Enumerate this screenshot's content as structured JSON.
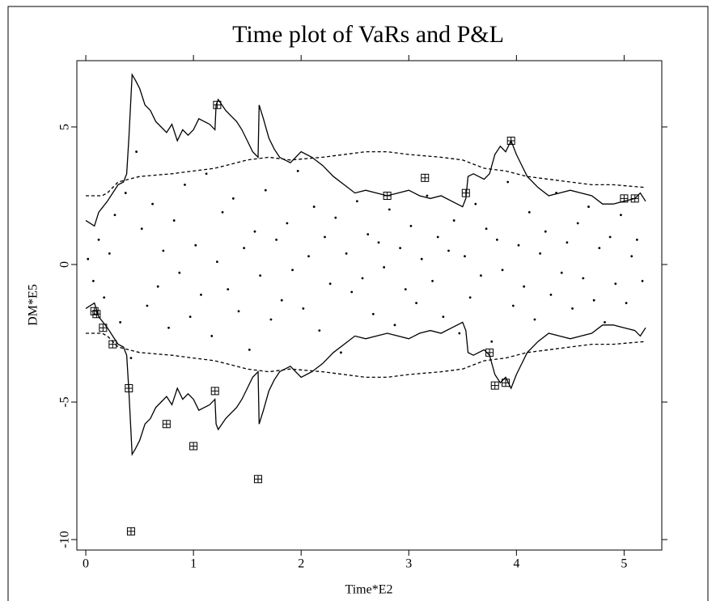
{
  "chart_data": {
    "type": "line",
    "title": "Time plot of VaRs and P&L",
    "x_label": "Time*E2",
    "y_label": "DM*E5",
    "xlim": [
      -0.083,
      5.35
    ],
    "ylim": [
      -10.38,
      7.41
    ],
    "xticks": [
      0,
      1,
      2,
      3,
      4,
      5
    ],
    "yticks": [
      -10,
      -5,
      0,
      5
    ],
    "grid": false,
    "series": [
      {
        "style": "solid",
        "color": "#000000",
        "x": [
          0,
          0.08,
          0.12,
          0.2,
          0.25,
          0.3,
          0.35,
          0.38,
          0.4,
          0.43,
          0.46,
          0.5,
          0.55,
          0.6,
          0.65,
          0.7,
          0.75,
          0.8,
          0.85,
          0.9,
          0.95,
          1.0,
          1.05,
          1.1,
          1.15,
          1.2,
          1.21,
          1.23,
          1.3,
          1.35,
          1.4,
          1.45,
          1.5,
          1.55,
          1.6,
          1.61,
          1.65,
          1.7,
          1.75,
          1.8,
          1.9,
          2.0,
          2.1,
          2.2,
          2.3,
          2.4,
          2.5,
          2.6,
          2.7,
          2.8,
          2.9,
          3.0,
          3.1,
          3.2,
          3.3,
          3.4,
          3.5,
          3.53,
          3.55,
          3.6,
          3.7,
          3.75,
          3.8,
          3.85,
          3.9,
          3.95,
          4.0,
          4.05,
          4.1,
          4.2,
          4.3,
          4.4,
          4.5,
          4.6,
          4.7,
          4.8,
          4.9,
          5.0,
          5.1,
          5.15,
          5.2
        ],
        "values": [
          1.6,
          1.4,
          1.9,
          2.3,
          2.6,
          2.9,
          3.0,
          3.3,
          4.6,
          6.9,
          6.7,
          6.4,
          5.8,
          5.6,
          5.2,
          5.0,
          4.8,
          5.1,
          4.5,
          4.9,
          4.7,
          4.9,
          5.3,
          5.2,
          5.1,
          4.9,
          5.8,
          6.0,
          5.6,
          5.4,
          5.2,
          4.9,
          4.5,
          4.1,
          3.9,
          5.8,
          5.3,
          4.6,
          4.2,
          3.9,
          3.7,
          4.1,
          3.9,
          3.6,
          3.2,
          2.9,
          2.6,
          2.7,
          2.6,
          2.5,
          2.6,
          2.7,
          2.5,
          2.4,
          2.5,
          2.3,
          2.1,
          2.4,
          3.2,
          3.3,
          3.1,
          3.3,
          4.0,
          4.3,
          4.1,
          4.5,
          4.0,
          3.6,
          3.2,
          2.8,
          2.5,
          2.6,
          2.7,
          2.6,
          2.5,
          2.2,
          2.2,
          2.3,
          2.4,
          2.6,
          2.3
        ]
      },
      {
        "style": "solid",
        "color": "#000000",
        "x": [
          0,
          0.08,
          0.12,
          0.2,
          0.25,
          0.3,
          0.35,
          0.38,
          0.4,
          0.43,
          0.46,
          0.5,
          0.55,
          0.6,
          0.65,
          0.7,
          0.75,
          0.8,
          0.85,
          0.9,
          0.95,
          1.0,
          1.05,
          1.1,
          1.15,
          1.2,
          1.21,
          1.23,
          1.3,
          1.35,
          1.4,
          1.45,
          1.5,
          1.55,
          1.6,
          1.61,
          1.65,
          1.7,
          1.75,
          1.8,
          1.9,
          2.0,
          2.1,
          2.2,
          2.3,
          2.4,
          2.5,
          2.6,
          2.7,
          2.8,
          2.9,
          3.0,
          3.1,
          3.2,
          3.3,
          3.4,
          3.5,
          3.53,
          3.55,
          3.6,
          3.7,
          3.75,
          3.8,
          3.85,
          3.9,
          3.95,
          4.0,
          4.05,
          4.1,
          4.2,
          4.3,
          4.4,
          4.5,
          4.6,
          4.7,
          4.8,
          4.9,
          5.0,
          5.1,
          5.15,
          5.2
        ],
        "values": [
          -1.6,
          -1.4,
          -1.9,
          -2.3,
          -2.6,
          -2.9,
          -3.0,
          -3.3,
          -4.6,
          -6.9,
          -6.7,
          -6.4,
          -5.8,
          -5.6,
          -5.2,
          -5.0,
          -4.8,
          -5.1,
          -4.5,
          -4.9,
          -4.7,
          -4.9,
          -5.3,
          -5.2,
          -5.1,
          -4.9,
          -5.8,
          -6.0,
          -5.6,
          -5.4,
          -5.2,
          -4.9,
          -4.5,
          -4.1,
          -3.9,
          -5.8,
          -5.3,
          -4.6,
          -4.2,
          -3.9,
          -3.7,
          -4.1,
          -3.9,
          -3.6,
          -3.2,
          -2.9,
          -2.6,
          -2.7,
          -2.6,
          -2.5,
          -2.6,
          -2.7,
          -2.5,
          -2.4,
          -2.5,
          -2.3,
          -2.1,
          -2.4,
          -3.2,
          -3.3,
          -3.1,
          -3.3,
          -4.0,
          -4.3,
          -4.1,
          -4.5,
          -4.0,
          -3.6,
          -3.2,
          -2.8,
          -2.5,
          -2.6,
          -2.7,
          -2.6,
          -2.5,
          -2.2,
          -2.2,
          -2.3,
          -2.4,
          -2.6,
          -2.3
        ]
      },
      {
        "style": "dashed",
        "color": "#000000",
        "x": [
          0,
          0.15,
          0.2,
          0.3,
          0.5,
          0.8,
          1.0,
          1.2,
          1.3,
          1.5,
          1.7,
          1.9,
          2.2,
          2.4,
          2.6,
          2.8,
          3.0,
          3.3,
          3.5,
          3.7,
          3.9,
          4.1,
          4.3,
          4.5,
          4.7,
          4.9,
          5.2
        ],
        "values": [
          2.5,
          2.5,
          2.6,
          3.0,
          3.2,
          3.3,
          3.4,
          3.5,
          3.6,
          3.8,
          3.9,
          3.8,
          3.9,
          4.0,
          4.1,
          4.1,
          4.0,
          3.9,
          3.8,
          3.5,
          3.4,
          3.2,
          3.1,
          3.0,
          2.9,
          2.9,
          2.8
        ]
      },
      {
        "style": "dashed",
        "color": "#000000",
        "x": [
          0,
          0.15,
          0.2,
          0.3,
          0.5,
          0.8,
          1.0,
          1.2,
          1.3,
          1.5,
          1.7,
          1.9,
          2.2,
          2.4,
          2.6,
          2.8,
          3.0,
          3.3,
          3.5,
          3.7,
          3.9,
          4.1,
          4.3,
          4.5,
          4.7,
          4.9,
          5.2
        ],
        "values": [
          -2.5,
          -2.5,
          -2.6,
          -3.0,
          -3.2,
          -3.3,
          -3.4,
          -3.5,
          -3.6,
          -3.8,
          -3.9,
          -3.8,
          -3.9,
          -4.0,
          -4.1,
          -4.1,
          -4.0,
          -3.9,
          -3.8,
          -3.5,
          -3.4,
          -3.2,
          -3.1,
          -3.0,
          -2.9,
          -2.9,
          -2.8
        ]
      },
      {
        "style": "dots",
        "color": "#000000",
        "x": [
          0.02,
          0.07,
          0.12,
          0.17,
          0.22,
          0.27,
          0.32,
          0.37,
          0.42,
          0.47,
          0.52,
          0.57,
          0.62,
          0.67,
          0.72,
          0.77,
          0.82,
          0.87,
          0.92,
          0.97,
          1.02,
          1.07,
          1.12,
          1.17,
          1.22,
          1.27,
          1.32,
          1.37,
          1.42,
          1.47,
          1.52,
          1.57,
          1.62,
          1.67,
          1.72,
          1.77,
          1.82,
          1.87,
          1.92,
          1.97,
          2.02,
          2.07,
          2.12,
          2.17,
          2.22,
          2.27,
          2.32,
          2.37,
          2.42,
          2.47,
          2.52,
          2.57,
          2.62,
          2.67,
          2.72,
          2.77,
          2.82,
          2.87,
          2.92,
          2.97,
          3.02,
          3.07,
          3.12,
          3.17,
          3.22,
          3.27,
          3.32,
          3.37,
          3.42,
          3.47,
          3.52,
          3.57,
          3.62,
          3.67,
          3.72,
          3.77,
          3.82,
          3.87,
          3.92,
          3.97,
          4.02,
          4.07,
          4.12,
          4.17,
          4.22,
          4.27,
          4.32,
          4.37,
          4.42,
          4.47,
          4.52,
          4.57,
          4.62,
          4.67,
          4.72,
          4.77,
          4.82,
          4.87,
          4.92,
          4.97,
          5.02,
          5.07,
          5.12,
          5.17
        ],
        "values": [
          0.2,
          -0.6,
          0.9,
          -1.2,
          0.4,
          1.8,
          -2.1,
          2.6,
          -3.4,
          4.1,
          1.3,
          -1.5,
          2.2,
          -0.8,
          0.5,
          -2.3,
          1.6,
          -0.3,
          2.9,
          -1.9,
          0.7,
          -1.1,
          3.3,
          -2.6,
          0.1,
          1.9,
          -0.9,
          2.4,
          -1.7,
          0.6,
          -3.1,
          1.2,
          -0.4,
          2.7,
          -2.0,
          0.9,
          -1.3,
          1.5,
          -0.2,
          3.4,
          -1.6,
          0.3,
          2.1,
          -2.4,
          1.0,
          -0.7,
          1.7,
          -3.2,
          0.4,
          -1.0,
          2.3,
          -0.5,
          1.1,
          -1.8,
          0.8,
          -0.1,
          2.0,
          -2.2,
          0.6,
          -0.9,
          1.4,
          -1.4,
          0.2,
          2.5,
          -0.6,
          1.0,
          -1.9,
          0.5,
          1.6,
          -2.5,
          0.3,
          -1.2,
          2.2,
          -0.4,
          1.3,
          -2.8,
          0.9,
          -0.2,
          3.0,
          -1.5,
          0.7,
          -0.8,
          1.9,
          -2.0,
          0.4,
          1.2,
          -1.1,
          2.6,
          -0.3,
          0.8,
          -1.6,
          1.5,
          -0.5,
          2.1,
          -1.3,
          0.6,
          -2.1,
          1.0,
          -0.7,
          1.8,
          -1.4,
          0.3,
          0.9,
          -0.6
        ]
      },
      {
        "style": "boxes",
        "color": "#000000",
        "x": [
          1.22,
          2.8,
          3.15,
          3.53,
          3.95,
          5.0,
          5.1,
          0.08,
          0.1,
          0.16,
          0.25,
          0.4,
          0.42,
          0.75,
          1.0,
          1.2,
          1.6,
          3.75,
          3.8,
          3.9
        ],
        "values": [
          5.8,
          2.5,
          3.15,
          2.6,
          4.5,
          2.4,
          2.4,
          -1.7,
          -1.8,
          -2.3,
          -2.9,
          -4.5,
          -9.7,
          -5.8,
          -6.6,
          -4.6,
          -7.8,
          -3.2,
          -4.4,
          -4.3
        ]
      }
    ]
  }
}
